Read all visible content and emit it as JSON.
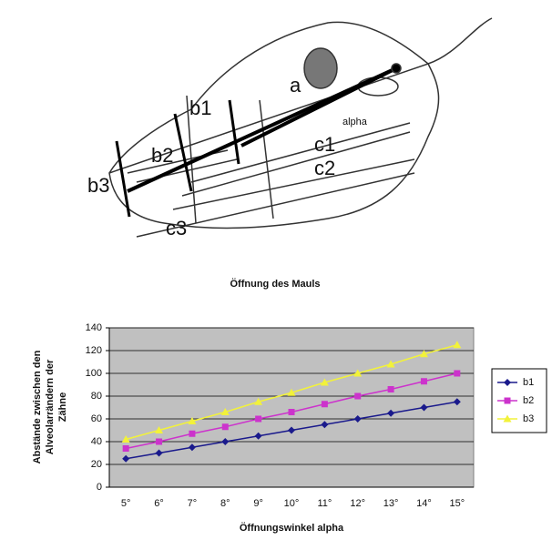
{
  "diagram": {
    "labels": [
      "a",
      "b1",
      "b2",
      "b3",
      "c1",
      "c2",
      "c3",
      "alpha"
    ]
  },
  "chart_data": {
    "type": "line",
    "title": "Öffnung des Mauls",
    "x_label": "Öffnungswinkel alpha",
    "y_label": [
      "Abstände zwischen den",
      "Alveolarrändern der",
      "Zähne"
    ],
    "categories": [
      "5°",
      "6°",
      "7°",
      "8°",
      "9°",
      "10°",
      "11°",
      "12°",
      "13°",
      "14°",
      "15°"
    ],
    "series": [
      {
        "name": "b1",
        "color": "#1a1a8c",
        "marker": "diamond",
        "values": [
          25,
          30,
          35,
          40,
          45,
          50,
          55,
          60,
          65,
          70,
          75
        ]
      },
      {
        "name": "b2",
        "color": "#cc33cc",
        "marker": "square",
        "values": [
          34,
          40,
          47,
          53,
          60,
          66,
          73,
          80,
          86,
          93,
          100
        ]
      },
      {
        "name": "b3",
        "color": "#f2f23a",
        "marker": "triangle",
        "values": [
          42,
          50,
          58,
          66,
          75,
          83,
          92,
          100,
          108,
          117,
          125
        ]
      }
    ],
    "ylim": [
      0,
      140
    ],
    "yticks": [
      0,
      20,
      40,
      60,
      80,
      100,
      120,
      140
    ],
    "grid": true,
    "legend": "right"
  }
}
